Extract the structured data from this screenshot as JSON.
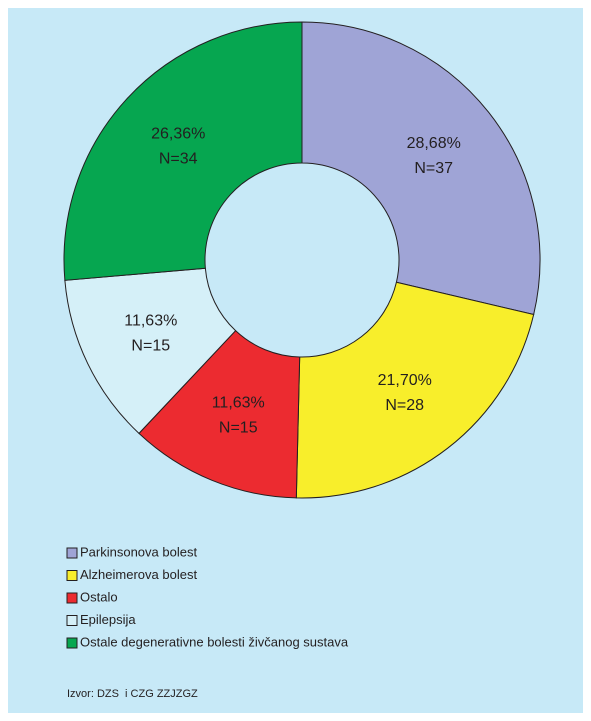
{
  "chart_data": {
    "type": "donut",
    "categories": [
      "Parkinsonova bolest",
      "Alzheimerova bolest",
      "Ostalo",
      "Epilepsija",
      "Ostale degenerativne bolesti živčanog sustava"
    ],
    "values": [
      28.68,
      21.7,
      11.63,
      11.63,
      26.36
    ],
    "value_labels": [
      "28,68%",
      "21,70%",
      "11,63%",
      "11,63%",
      "26,36%"
    ],
    "n_labels": [
      "N=37",
      "N=28",
      "N=15",
      "N=15",
      "N=34"
    ],
    "colors": [
      "#9fa4d6",
      "#f8ee2b",
      "#ec2b30",
      "#d5f0f8",
      "#06a650"
    ],
    "source": "Izvor: DZS  i CZG ZZJZGZ"
  }
}
